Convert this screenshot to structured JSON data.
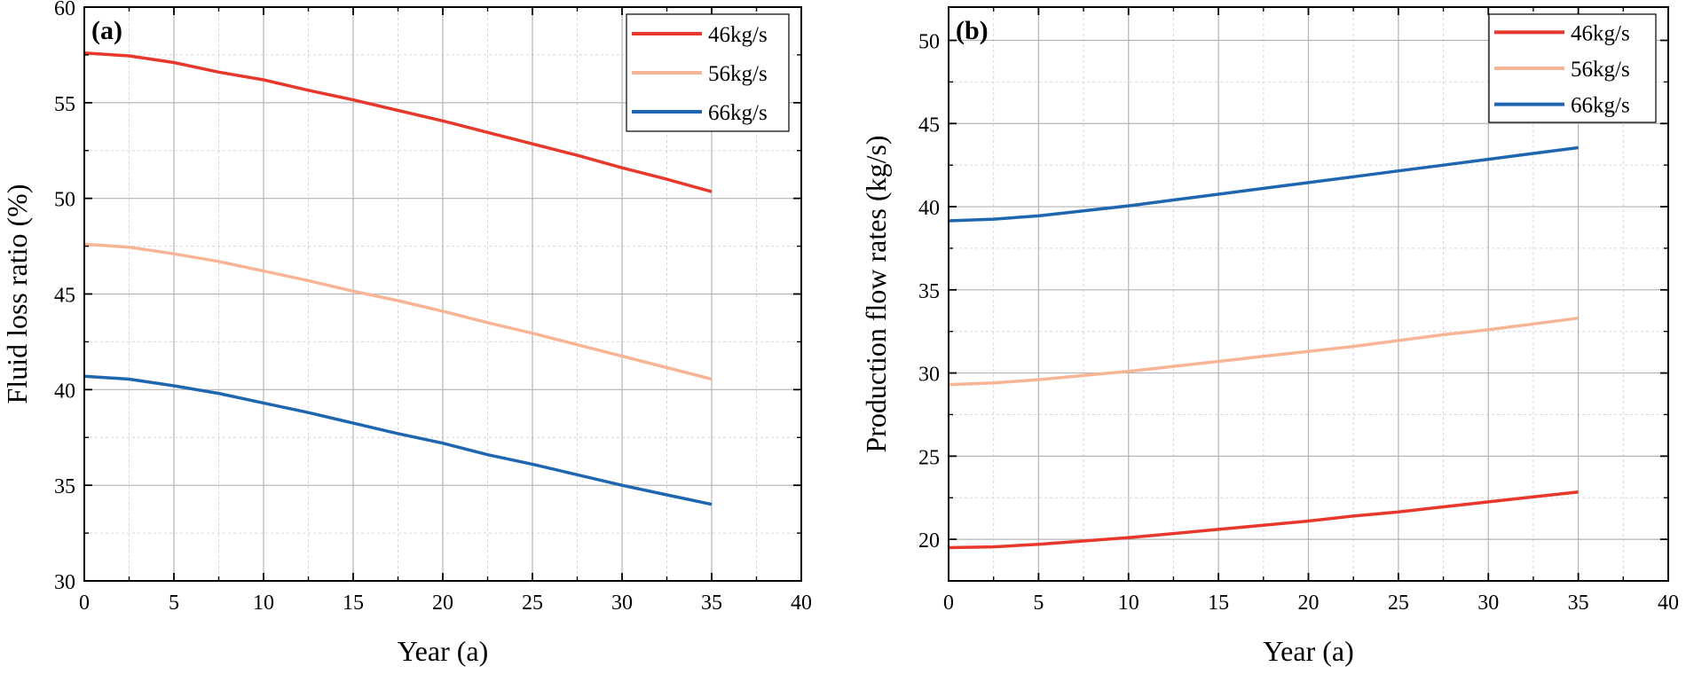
{
  "chart_data": [
    {
      "type": "line",
      "panel_label": "(a)",
      "xlabel": "Year (a)",
      "ylabel": "Fluid loss ratio (%)",
      "xlim": [
        0,
        40
      ],
      "ylim": [
        30,
        60
      ],
      "xticks": [
        0,
        5,
        10,
        15,
        20,
        25,
        30,
        35,
        40
      ],
      "yticks": [
        30,
        35,
        40,
        45,
        50,
        55,
        60
      ],
      "grid": true,
      "legend_position": "top-right",
      "series": [
        {
          "name": "46kg/s",
          "color": "#e8382b",
          "x": [
            0,
            2.5,
            5,
            7.5,
            10,
            12.5,
            15,
            17.5,
            20,
            22.5,
            25,
            27.5,
            30,
            32.5,
            35
          ],
          "y": [
            57.6,
            57.45,
            57.1,
            56.6,
            56.2,
            55.65,
            55.15,
            54.6,
            54.05,
            53.45,
            52.85,
            52.25,
            51.6,
            51.0,
            50.35
          ]
        },
        {
          "name": "56kg/s",
          "color": "#f7b596",
          "x": [
            0,
            2.5,
            5,
            7.5,
            10,
            12.5,
            15,
            17.5,
            20,
            22.5,
            25,
            27.5,
            30,
            32.5,
            35
          ],
          "y": [
            47.6,
            47.45,
            47.1,
            46.7,
            46.2,
            45.7,
            45.15,
            44.65,
            44.1,
            43.5,
            42.95,
            42.35,
            41.75,
            41.15,
            40.55
          ]
        },
        {
          "name": "66kg/s",
          "color": "#1f66b0",
          "x": [
            0,
            2.5,
            5,
            7.5,
            10,
            12.5,
            15,
            17.5,
            20,
            22.5,
            25,
            27.5,
            30,
            32.5,
            35
          ],
          "y": [
            40.7,
            40.55,
            40.2,
            39.8,
            39.3,
            38.8,
            38.25,
            37.7,
            37.2,
            36.6,
            36.1,
            35.55,
            35.0,
            34.5,
            34.0
          ]
        }
      ]
    },
    {
      "type": "line",
      "panel_label": "(b)",
      "xlabel": "Year (a)",
      "ylabel": "Production flow rates (kg/s)",
      "xlim": [
        0,
        40
      ],
      "ylim": [
        17.5,
        52
      ],
      "xticks": [
        0,
        5,
        10,
        15,
        20,
        25,
        30,
        35,
        40
      ],
      "yticks": [
        20,
        25,
        30,
        35,
        40,
        45,
        50
      ],
      "grid": true,
      "legend_position": "top-right",
      "series": [
        {
          "name": "46kg/s",
          "color": "#e8382b",
          "x": [
            0,
            2.5,
            5,
            7.5,
            10,
            12.5,
            15,
            17.5,
            20,
            22.5,
            25,
            27.5,
            30,
            32.5,
            35
          ],
          "y": [
            19.5,
            19.55,
            19.7,
            19.9,
            20.1,
            20.35,
            20.6,
            20.85,
            21.1,
            21.4,
            21.65,
            21.95,
            22.25,
            22.55,
            22.85
          ]
        },
        {
          "name": "56kg/s",
          "color": "#f7b596",
          "x": [
            0,
            2.5,
            5,
            7.5,
            10,
            12.5,
            15,
            17.5,
            20,
            22.5,
            25,
            27.5,
            30,
            32.5,
            35
          ],
          "y": [
            29.3,
            29.4,
            29.6,
            29.85,
            30.1,
            30.4,
            30.7,
            31.0,
            31.3,
            31.6,
            31.95,
            32.3,
            32.6,
            32.95,
            33.3
          ]
        },
        {
          "name": "66kg/s",
          "color": "#1f66b0",
          "x": [
            0,
            2.5,
            5,
            7.5,
            10,
            12.5,
            15,
            17.5,
            20,
            22.5,
            25,
            27.5,
            30,
            32.5,
            35
          ],
          "y": [
            39.15,
            39.25,
            39.45,
            39.75,
            40.05,
            40.4,
            40.75,
            41.1,
            41.45,
            41.8,
            42.15,
            42.5,
            42.85,
            43.2,
            43.55
          ]
        }
      ]
    }
  ]
}
